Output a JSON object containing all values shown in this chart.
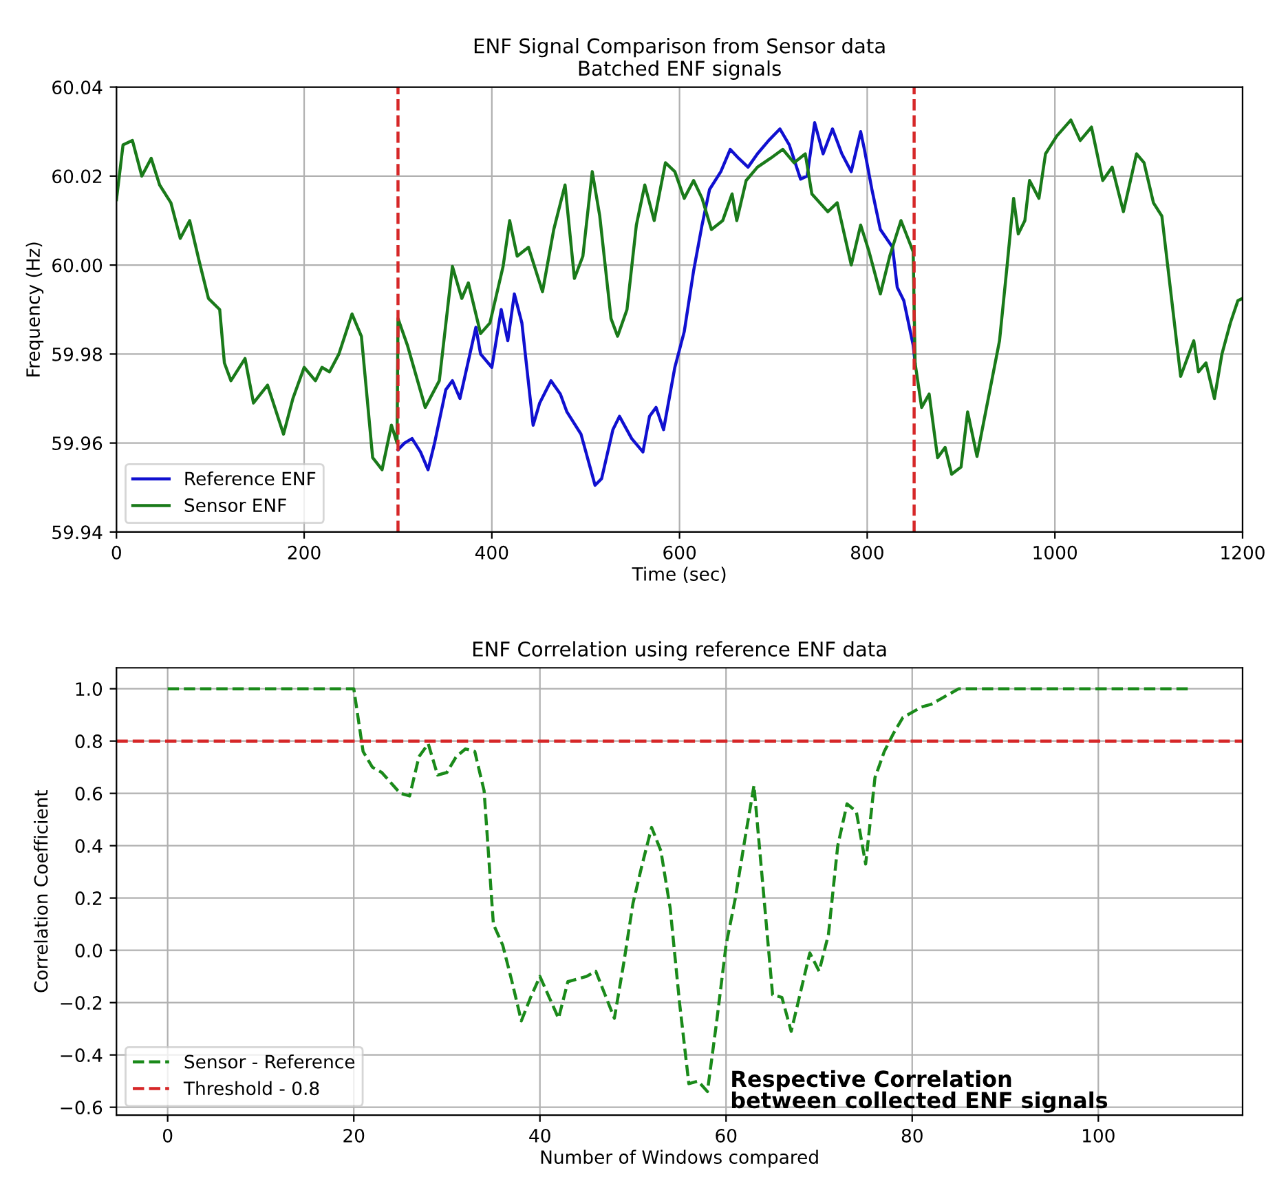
{
  "chart_data": [
    {
      "type": "line",
      "title": "ENF Signal Comparison from Sensor data",
      "subtitle": "Batched ENF signals",
      "xlabel": "Time (sec)",
      "ylabel": "Frequency (Hz)",
      "xlim": [
        0,
        1200
      ],
      "xticks": [
        0,
        200,
        400,
        600,
        800,
        1000,
        1200
      ],
      "ylim": [
        59.94,
        60.04
      ],
      "yticks": [
        {
          "value": 59.94,
          "label": "59.94"
        },
        {
          "value": 59.96,
          "label": "59.96"
        },
        {
          "value": 59.98,
          "label": "59.98"
        },
        {
          "value": 60.0,
          "label": "60.00"
        },
        {
          "value": 60.02,
          "label": "60.02"
        },
        {
          "value": 60.04,
          "label": "60.04"
        }
      ],
      "grid": true,
      "legend": "bottom left",
      "line_style": "solid",
      "series": [
        {
          "name": "Reference ENF",
          "color": "#1010d0",
          "x": [
            300,
            307,
            315,
            324,
            332,
            339,
            351,
            358,
            366,
            383,
            388,
            400,
            410,
            417,
            424,
            432,
            444,
            451,
            463,
            473,
            480,
            495,
            510,
            517,
            529,
            536,
            549,
            561,
            568,
            575,
            583,
            595,
            605,
            615,
            624,
            632,
            644,
            654,
            663,
            673,
            683,
            695,
            707,
            717,
            729,
            736,
            744,
            753,
            763,
            773,
            783,
            793,
            797,
            805,
            814,
            827,
            832,
            839,
            841,
            849,
            851
          ],
          "values": [
            59.9585,
            59.96,
            59.961,
            59.958,
            59.954,
            59.96,
            59.972,
            59.974,
            59.97,
            59.986,
            59.98,
            59.977,
            59.99,
            59.983,
            59.9935,
            59.987,
            59.964,
            59.969,
            59.974,
            59.971,
            59.967,
            59.962,
            59.9505,
            59.952,
            59.963,
            59.966,
            59.961,
            59.958,
            59.966,
            59.968,
            59.963,
            59.977,
            59.985,
            59.9987,
            60.009,
            60.017,
            60.021,
            60.026,
            60.024,
            60.022,
            60.025,
            60.028,
            60.0306,
            60.027,
            60.0193,
            60.02,
            60.032,
            60.025,
            60.0306,
            60.025,
            60.021,
            60.03,
            60.026,
            60.017,
            60.008,
            60.004,
            59.995,
            59.992,
            59.99,
            59.982,
            59.978
          ]
        },
        {
          "name": "Sensor ENF",
          "color": "#1a7a1a",
          "x": [
            0,
            7,
            17,
            27,
            37,
            46,
            58,
            68,
            78,
            88,
            98,
            110,
            115,
            122,
            137,
            146,
            161,
            178,
            188,
            200,
            212,
            219,
            227,
            237,
            251,
            261,
            273,
            283,
            293,
            299,
            300,
            310,
            329,
            344,
            358,
            368,
            375,
            388,
            398,
            412,
            419,
            427,
            439,
            454,
            466,
            478,
            488,
            497,
            507,
            515,
            527,
            534,
            544,
            554,
            563,
            573,
            585,
            595,
            605,
            615,
            624,
            634,
            646,
            656,
            661,
            671,
            683,
            697,
            710,
            722,
            734,
            741,
            758,
            768,
            783,
            793,
            802,
            814,
            824,
            836,
            849,
            851,
            858,
            866,
            875,
            883,
            890,
            900,
            907,
            917,
            929,
            941,
            949,
            956,
            961,
            968,
            973,
            983,
            990,
            1002,
            1017,
            1027,
            1039,
            1051,
            1061,
            1073,
            1087,
            1095,
            1105,
            1114,
            1124,
            1134,
            1148,
            1153,
            1161,
            1170,
            1178,
            1187,
            1195,
            1200
          ],
          "values": [
            60.0147,
            60.027,
            60.028,
            60.02,
            60.024,
            60.018,
            60.014,
            60.006,
            60.01,
            60.001,
            59.9925,
            59.99,
            59.978,
            59.974,
            59.979,
            59.969,
            59.973,
            59.962,
            59.97,
            59.977,
            59.974,
            59.977,
            59.976,
            59.98,
            59.989,
            59.984,
            59.9567,
            59.954,
            59.964,
            59.96,
            59.988,
            59.982,
            59.968,
            59.974,
            59.9997,
            59.9925,
            59.996,
            59.9846,
            59.987,
            59.9997,
            60.01,
            60.002,
            60.004,
            59.994,
            60.008,
            60.018,
            59.997,
            60.002,
            60.021,
            60.011,
            59.988,
            59.984,
            59.99,
            60.009,
            60.018,
            60.01,
            60.023,
            60.021,
            60.015,
            60.019,
            60.015,
            60.008,
            60.01,
            60.016,
            60.01,
            60.019,
            60.022,
            60.024,
            60.026,
            60.023,
            60.025,
            60.016,
            60.012,
            60.014,
            60.0,
            60.009,
            60.003,
            59.9935,
            60.002,
            60.01,
            60.003,
            59.978,
            59.968,
            59.971,
            59.9567,
            59.959,
            59.953,
            59.9546,
            59.967,
            59.957,
            59.97,
            59.983,
            59.9997,
            60.015,
            60.007,
            60.01,
            60.019,
            60.015,
            60.025,
            60.029,
            60.0326,
            60.028,
            60.031,
            60.019,
            60.022,
            60.012,
            60.025,
            60.023,
            60.014,
            60.011,
            59.993,
            59.975,
            59.983,
            59.976,
            59.978,
            59.97,
            59.98,
            59.987,
            59.992,
            59.9925
          ]
        }
      ],
      "ref_lines": [
        {
          "axis": "x",
          "value": 300,
          "color": "#d62728",
          "line_style": "dashed"
        },
        {
          "axis": "x",
          "value": 850,
          "color": "#d62728",
          "line_style": "dashed"
        }
      ]
    },
    {
      "type": "line",
      "title": "ENF Correlation using reference ENF data",
      "xlabel": "Number of Windows compared",
      "ylabel": "Correlation Coefficient",
      "xlim": [
        -5.5,
        115.5
      ],
      "xticks": [
        0,
        20,
        40,
        60,
        80,
        100
      ],
      "ylim": [
        -0.63,
        1.08
      ],
      "yticks": [
        {
          "value": -0.6,
          "label": "−0.6"
        },
        {
          "value": -0.4,
          "label": "−0.4"
        },
        {
          "value": -0.2,
          "label": "−0.2"
        },
        {
          "value": 0.0,
          "label": "0.0"
        },
        {
          "value": 0.2,
          "label": "0.2"
        },
        {
          "value": 0.4,
          "label": "0.4"
        },
        {
          "value": 0.6,
          "label": "0.6"
        },
        {
          "value": 0.8,
          "label": "0.8"
        },
        {
          "value": 1.0,
          "label": "1.0"
        }
      ],
      "grid": true,
      "legend": "bottom left",
      "line_style": "dashed",
      "series": [
        {
          "name": "Sensor - Reference",
          "color": "#1a8a1a",
          "x": [
            0,
            20,
            21,
            22,
            23,
            24,
            25,
            26,
            27,
            28,
            29,
            30,
            31,
            32,
            33,
            34,
            35,
            36,
            37,
            38,
            39,
            40,
            41,
            42,
            43,
            44,
            45,
            46,
            47,
            48,
            49,
            50,
            51,
            52,
            53,
            54,
            55,
            56,
            57,
            58,
            59,
            60,
            61,
            62,
            63,
            64,
            65,
            66,
            67,
            68,
            69,
            70,
            71,
            72,
            73,
            74,
            75,
            76,
            77,
            78,
            79,
            80,
            81,
            82,
            83,
            84,
            85,
            110
          ],
          "values": [
            1.0,
            1.0,
            0.76,
            0.7,
            0.68,
            0.64,
            0.6,
            0.59,
            0.74,
            0.79,
            0.67,
            0.68,
            0.74,
            0.77,
            0.76,
            0.61,
            0.1,
            0.02,
            -0.12,
            -0.27,
            -0.18,
            -0.1,
            -0.18,
            -0.26,
            -0.12,
            -0.11,
            -0.1,
            -0.08,
            -0.17,
            -0.26,
            -0.05,
            0.18,
            0.33,
            0.47,
            0.38,
            0.16,
            -0.2,
            -0.51,
            -0.5,
            -0.54,
            -0.27,
            0.02,
            0.2,
            0.42,
            0.63,
            0.23,
            -0.17,
            -0.18,
            -0.31,
            -0.16,
            -0.01,
            -0.08,
            0.06,
            0.4,
            0.56,
            0.53,
            0.33,
            0.66,
            0.76,
            0.83,
            0.89,
            0.91,
            0.93,
            0.94,
            0.96,
            0.98,
            1.0,
            1.0
          ]
        }
      ],
      "ref_lines": [
        {
          "axis": "y",
          "value": 0.8,
          "label": "Threshold - 0.8",
          "color": "#d62728",
          "line_style": "dashed"
        }
      ],
      "annotations": [
        "Respective Correlation\nbetween collected ENF signals"
      ]
    }
  ]
}
